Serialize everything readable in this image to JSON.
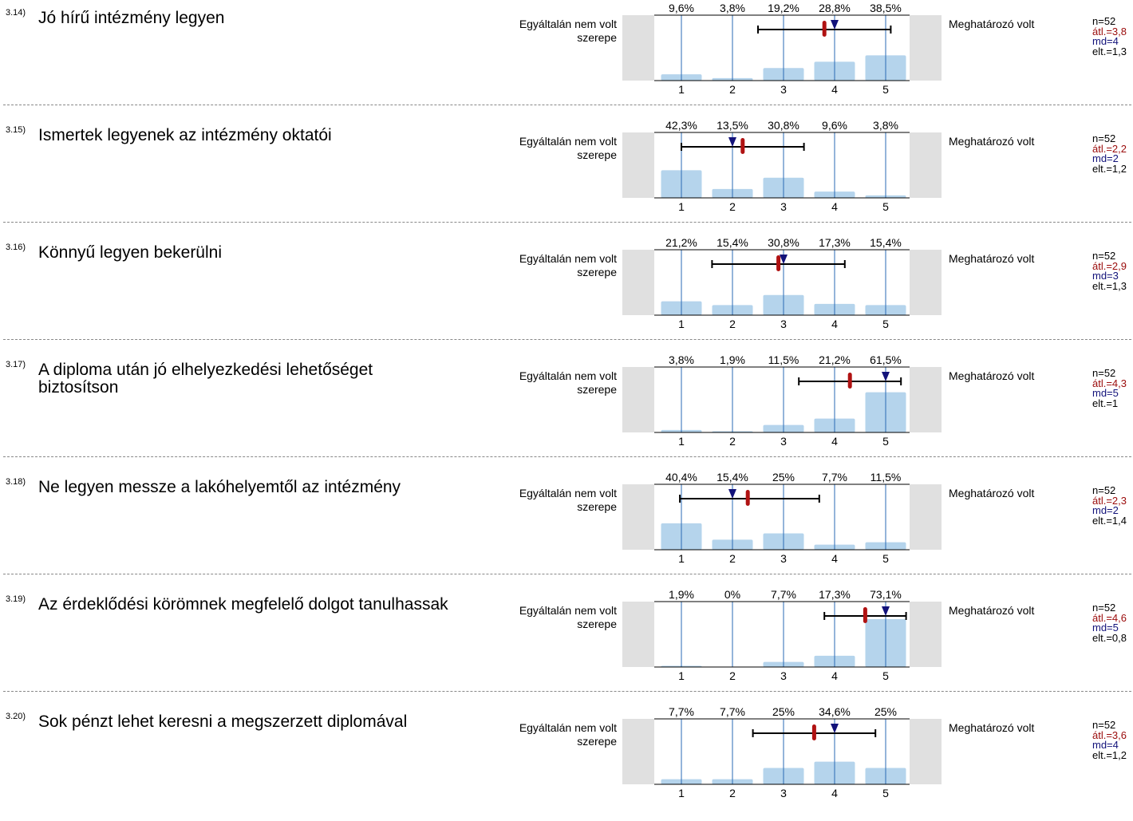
{
  "left_label": "Egyáltalán nem volt szerepe",
  "right_label": "Meghatározó volt",
  "chart_data": [
    {
      "type": "bar",
      "id": "3.14)",
      "title": "Jó hírű intézmény legyen",
      "categories": [
        "1",
        "2",
        "3",
        "4",
        "5"
      ],
      "values": [
        9.6,
        3.8,
        19.2,
        28.8,
        38.5
      ],
      "value_labels": [
        "9,6%",
        "3,8%",
        "19,2%",
        "28,8%",
        "38,5%"
      ],
      "n": "n=52",
      "mean_label": "átl.=3,8",
      "md_label": "md=4",
      "sd_label": "elt.=1,3",
      "mean": 3.8,
      "median": 4,
      "sd": 1.3
    },
    {
      "type": "bar",
      "id": "3.15)",
      "title": "Ismertek legyenek az intézmény oktatói",
      "categories": [
        "1",
        "2",
        "3",
        "4",
        "5"
      ],
      "values": [
        42.3,
        13.5,
        30.8,
        9.6,
        3.8
      ],
      "value_labels": [
        "42,3%",
        "13,5%",
        "30,8%",
        "9,6%",
        "3,8%"
      ],
      "n": "n=52",
      "mean_label": "átl.=2,2",
      "md_label": "md=2",
      "sd_label": "elt.=1,2",
      "mean": 2.2,
      "median": 2,
      "sd": 1.2
    },
    {
      "type": "bar",
      "id": "3.16)",
      "title": "Könnyű legyen bekerülni",
      "categories": [
        "1",
        "2",
        "3",
        "4",
        "5"
      ],
      "values": [
        21.2,
        15.4,
        30.8,
        17.3,
        15.4
      ],
      "value_labels": [
        "21,2%",
        "15,4%",
        "30,8%",
        "17,3%",
        "15,4%"
      ],
      "n": "n=52",
      "mean_label": "átl.=2,9",
      "md_label": "md=3",
      "sd_label": "elt.=1,3",
      "mean": 2.9,
      "median": 3,
      "sd": 1.3
    },
    {
      "type": "bar",
      "id": "3.17)",
      "title": "A diploma után jó elhelyezkedési lehetőséget biztosítson",
      "categories": [
        "1",
        "2",
        "3",
        "4",
        "5"
      ],
      "values": [
        3.8,
        1.9,
        11.5,
        21.2,
        61.5
      ],
      "value_labels": [
        "3,8%",
        "1,9%",
        "11,5%",
        "21,2%",
        "61,5%"
      ],
      "n": "n=52",
      "mean_label": "átl.=4,3",
      "md_label": "md=5",
      "sd_label": "elt.=1",
      "mean": 4.3,
      "median": 5,
      "sd": 1.0
    },
    {
      "type": "bar",
      "id": "3.18)",
      "title": "Ne legyen messze a lakóhelyemtől az intézmény",
      "categories": [
        "1",
        "2",
        "3",
        "4",
        "5"
      ],
      "values": [
        40.4,
        15.4,
        25,
        7.7,
        11.5
      ],
      "value_labels": [
        "40,4%",
        "15,4%",
        "25%",
        "7,7%",
        "11,5%"
      ],
      "n": "n=52",
      "mean_label": "átl.=2,3",
      "md_label": "md=2",
      "sd_label": "elt.=1,4",
      "mean": 2.3,
      "median": 2,
      "sd": 1.4
    },
    {
      "type": "bar",
      "id": "3.19)",
      "title": "Az érdeklődési körömnek megfelelő dolgot tanulhassak",
      "categories": [
        "1",
        "2",
        "3",
        "4",
        "5"
      ],
      "values": [
        1.9,
        0,
        7.7,
        17.3,
        73.1
      ],
      "value_labels": [
        "1,9%",
        "0%",
        "7,7%",
        "17,3%",
        "73,1%"
      ],
      "n": "n=52",
      "mean_label": "átl.=4,6",
      "md_label": "md=5",
      "sd_label": "elt.=0,8",
      "mean": 4.6,
      "median": 5,
      "sd": 0.8
    },
    {
      "type": "bar",
      "id": "3.20)",
      "title": "Sok pénzt lehet keresni a megszerzett diplomával",
      "categories": [
        "1",
        "2",
        "3",
        "4",
        "5"
      ],
      "values": [
        7.7,
        7.7,
        25,
        34.6,
        25
      ],
      "value_labels": [
        "7,7%",
        "7,7%",
        "25%",
        "34,6%",
        "25%"
      ],
      "n": "n=52",
      "mean_label": "átl.=3,6",
      "md_label": "md=4",
      "sd_label": "elt.=1,2",
      "mean": 3.6,
      "median": 4,
      "sd": 1.2
    }
  ]
}
